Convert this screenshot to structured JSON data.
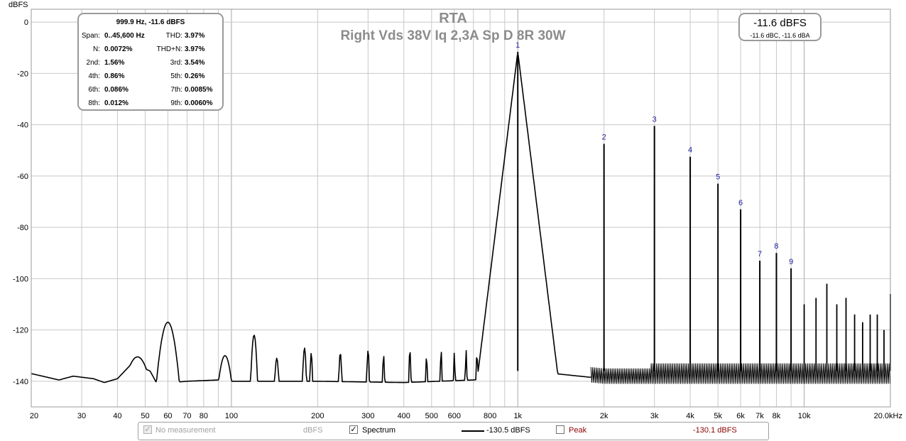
{
  "chart_data": {
    "type": "line",
    "title": "RTA",
    "subtitle": "Right Vds 38V Iq 2,3A Sp D 8R 30W",
    "ylabel": "dBFS",
    "xscale": "log",
    "xlim": [
      20,
      20000
    ],
    "ylim": [
      -150,
      5
    ],
    "x_tick_labels": [
      {
        "x": 20,
        "label": "20"
      },
      {
        "x": 30,
        "label": "30"
      },
      {
        "x": 40,
        "label": "40"
      },
      {
        "x": 50,
        "label": "50"
      },
      {
        "x": 60,
        "label": "60"
      },
      {
        "x": 70,
        "label": "70"
      },
      {
        "x": 80,
        "label": "80"
      },
      {
        "x": 100,
        "label": "100"
      },
      {
        "x": 200,
        "label": "200"
      },
      {
        "x": 300,
        "label": "300"
      },
      {
        "x": 400,
        "label": "400"
      },
      {
        "x": 500,
        "label": "500"
      },
      {
        "x": 600,
        "label": "600"
      },
      {
        "x": 800,
        "label": "800"
      },
      {
        "x": 1000,
        "label": "1k"
      },
      {
        "x": 2000,
        "label": "2k"
      },
      {
        "x": 3000,
        "label": "3k"
      },
      {
        "x": 4000,
        "label": "4k"
      },
      {
        "x": 5000,
        "label": "5k"
      },
      {
        "x": 6000,
        "label": "6k"
      },
      {
        "x": 7000,
        "label": "7k"
      },
      {
        "x": 8000,
        "label": "8k"
      },
      {
        "x": 10000,
        "label": "10k"
      },
      {
        "x": 20000,
        "label": "20.0kHz"
      }
    ],
    "y_ticks": [
      0,
      -20,
      -40,
      -60,
      -80,
      -100,
      -120,
      -140
    ],
    "grid": true,
    "noise_floor": [
      [
        20,
        -137
      ],
      [
        25,
        -139.5
      ],
      [
        28,
        -138
      ],
      [
        33,
        -139
      ],
      [
        36,
        -140.5
      ],
      [
        40,
        -139
      ],
      [
        45,
        -133
      ],
      [
        52,
        -136
      ],
      [
        55,
        -141
      ],
      [
        70,
        -140
      ],
      [
        90,
        -139.5
      ],
      [
        100,
        -140
      ],
      [
        200,
        -140
      ],
      [
        400,
        -140.5
      ],
      [
        700,
        -139.5
      ],
      [
        900,
        -138
      ],
      [
        1100,
        -136
      ],
      [
        2000,
        -139
      ],
      [
        3000,
        -139
      ],
      [
        20000,
        -139
      ]
    ],
    "spurs": [
      {
        "f": 47,
        "db": -130.5,
        "w": 0.06
      },
      {
        "f": 60,
        "db": -117,
        "w": 0.035
      },
      {
        "f": 95,
        "db": -130,
        "w": 0.03
      },
      {
        "f": 120,
        "db": -122,
        "w": 0.012
      },
      {
        "f": 144,
        "db": -131,
        "w": 0.01
      },
      {
        "f": 180,
        "db": -127,
        "w": 0.008
      },
      {
        "f": 190,
        "db": -129,
        "w": 0.006
      },
      {
        "f": 240,
        "db": -129,
        "w": 0.007
      },
      {
        "f": 300,
        "db": -128,
        "w": 0.006
      },
      {
        "f": 340,
        "db": -130,
        "w": 0.005
      },
      {
        "f": 420,
        "db": -128,
        "w": 0.005
      },
      {
        "f": 480,
        "db": -130,
        "w": 0.004
      },
      {
        "f": 540,
        "db": -128,
        "w": 0.004
      },
      {
        "f": 600,
        "db": -129,
        "w": 0.004
      },
      {
        "f": 660,
        "db": -128,
        "w": 0.004
      },
      {
        "f": 720,
        "db": -129,
        "w": 0.004
      },
      {
        "f": 780,
        "db": -129,
        "w": 0.003
      },
      {
        "f": 840,
        "db": -128,
        "w": 0.003
      },
      {
        "f": 900,
        "db": -124,
        "w": 0.003
      },
      {
        "f": 960,
        "db": -126,
        "w": 0.003
      }
    ],
    "harmonics": [
      {
        "n": "1",
        "f": 999.9,
        "db": -11.6
      },
      {
        "n": "2",
        "f": 2000,
        "db": -47.5
      },
      {
        "n": "3",
        "f": 3000,
        "db": -40.5
      },
      {
        "n": "4",
        "f": 4000,
        "db": -52.5
      },
      {
        "n": "5",
        "f": 5000,
        "db": -63
      },
      {
        "n": "6",
        "f": 6000,
        "db": -73
      },
      {
        "n": "7",
        "f": 7000,
        "db": -93
      },
      {
        "n": "8",
        "f": 8000,
        "db": -90
      },
      {
        "n": "9",
        "f": 9000,
        "db": -96
      }
    ],
    "higher_harmonics": [
      {
        "f": 10000,
        "db": -110
      },
      {
        "f": 11000,
        "db": -107.5
      },
      {
        "f": 12000,
        "db": -102
      },
      {
        "f": 13000,
        "db": -110
      },
      {
        "f": 14000,
        "db": -107.5
      },
      {
        "f": 15000,
        "db": -114
      },
      {
        "f": 16000,
        "db": -117
      },
      {
        "f": 17000,
        "db": -114
      },
      {
        "f": 18000,
        "db": -114
      },
      {
        "f": 19000,
        "db": -120
      },
      {
        "f": 20000,
        "db": -106
      }
    ],
    "series": [
      {
        "name": "Spectrum",
        "value_label": "-130.5 dBFS",
        "color": "#000000",
        "visible": true
      },
      {
        "name": "Peak",
        "value_label": "-130.1 dBFS",
        "color": "#8b0000",
        "visible": false
      }
    ]
  },
  "stats_box": {
    "header": "999.9 Hz, -11.6 dBFS",
    "rows": [
      {
        "l1": "Span:",
        "v1": "0..45,600 Hz",
        "l2": "THD:",
        "v2": "3.97%"
      },
      {
        "l1": "N:",
        "v1": "0.0072%",
        "l2": "THD+N:",
        "v2": "3.97%"
      },
      {
        "l1": "2nd:",
        "v1": "1.56%",
        "l2": "3rd:",
        "v2": "3.54%"
      },
      {
        "l1": "4th:",
        "v1": "0.86%",
        "l2": "5th:",
        "v2": "0.26%"
      },
      {
        "l1": "6th:",
        "v1": "0.086%",
        "l2": "7th:",
        "v2": "0.0085%"
      },
      {
        "l1": "8th:",
        "v1": "0.012%",
        "l2": "9th:",
        "v2": "0.0060%"
      }
    ]
  },
  "level_box": {
    "main": "-11.6 dBFS",
    "sub": "-11.6 dBC, -11.6 dBA"
  },
  "legend": {
    "no_measurement": {
      "label": "No measurement",
      "unit": "dBFS",
      "checked": true,
      "disabled": true
    },
    "spectrum": {
      "label": "Spectrum",
      "value": "-130.5 dBFS",
      "checked": true
    },
    "peak": {
      "label": "Peak",
      "value": "-130.1 dBFS",
      "checked": false,
      "color": "#8b0000"
    }
  },
  "colors": {
    "grid": "#c8c8c8",
    "trace": "#000000",
    "harmonic_label": "#1f1fa0",
    "title": "#8c8c8c",
    "peak_text": "#8b0000"
  }
}
